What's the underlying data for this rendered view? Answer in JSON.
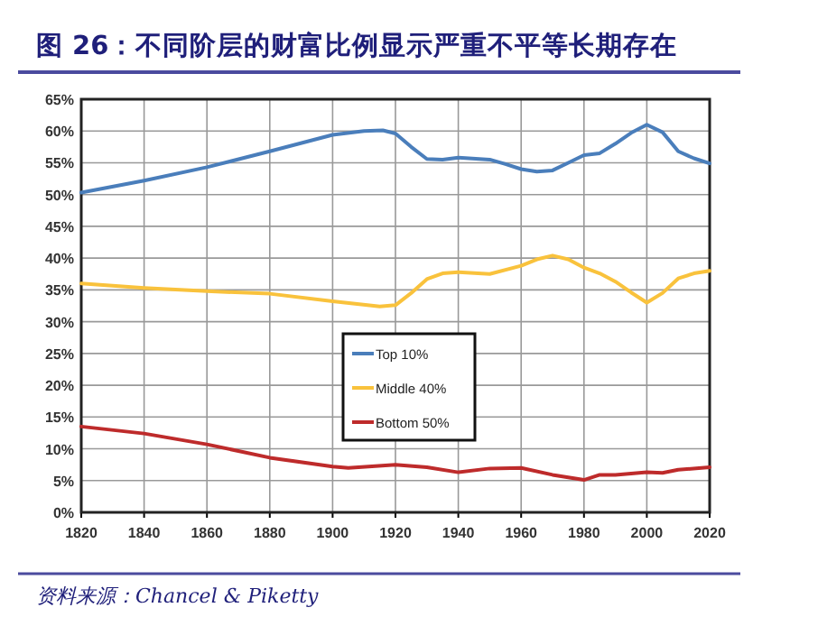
{
  "chart_data": [
    {
      "type": "line",
      "title": "图 26：不同阶层的财富比例显示严重不平等长期存在",
      "series": [
        {
          "name": "Top 10%",
          "color": "#4a7ebb",
          "x": [
            1820,
            1840,
            1860,
            1880,
            1900,
            1910,
            1916,
            1920,
            1925,
            1930,
            1935,
            1940,
            1950,
            1955,
            1960,
            1965,
            1970,
            1975,
            1980,
            1985,
            1990,
            1995,
            2000,
            2005,
            2008,
            2010,
            2015,
            2020
          ],
          "values": [
            50.3,
            52.2,
            54.3,
            56.8,
            59.4,
            60.0,
            60.1,
            59.6,
            57.5,
            55.6,
            55.5,
            55.8,
            55.5,
            54.8,
            54.0,
            53.6,
            53.8,
            55.0,
            56.2,
            56.5,
            58.0,
            59.7,
            61.0,
            59.8,
            58.0,
            56.8,
            55.7,
            54.9
          ]
        },
        {
          "name": "Middle 40%",
          "color": "#f9c23c",
          "x": [
            1820,
            1840,
            1860,
            1880,
            1900,
            1915,
            1920,
            1925,
            1930,
            1935,
            1940,
            1950,
            1960,
            1965,
            1970,
            1975,
            1980,
            1985,
            1990,
            1995,
            2000,
            2005,
            2010,
            2015,
            2020
          ],
          "values": [
            36.0,
            35.3,
            34.8,
            34.4,
            33.2,
            32.4,
            32.6,
            34.5,
            36.7,
            37.6,
            37.8,
            37.5,
            38.8,
            39.8,
            40.4,
            39.8,
            38.5,
            37.6,
            36.3,
            34.6,
            33.0,
            34.5,
            36.8,
            37.6,
            38.0
          ]
        },
        {
          "name": "Bottom 50%",
          "color": "#be2b2b",
          "x": [
            1820,
            1840,
            1860,
            1880,
            1900,
            1905,
            1920,
            1930,
            1940,
            1950,
            1960,
            1970,
            1980,
            1985,
            1990,
            2000,
            2005,
            2010,
            2020
          ],
          "values": [
            13.5,
            12.4,
            10.7,
            8.6,
            7.2,
            7.0,
            7.5,
            7.1,
            6.3,
            6.9,
            7.0,
            5.9,
            5.1,
            5.9,
            5.9,
            6.3,
            6.2,
            6.7,
            7.1
          ]
        }
      ],
      "xlim": [
        1820,
        2020
      ],
      "xticks": [
        1820,
        1840,
        1860,
        1880,
        1900,
        1920,
        1940,
        1960,
        1980,
        2000,
        2020
      ],
      "ylim": [
        0,
        65
      ],
      "yticks": [
        {
          "value": 0,
          "label": "0%"
        },
        {
          "value": 5,
          "label": "5%"
        },
        {
          "value": 10,
          "label": "10%"
        },
        {
          "value": 15,
          "label": "15%"
        },
        {
          "value": 20,
          "label": "20%"
        },
        {
          "value": 25,
          "label": "25%"
        },
        {
          "value": 30,
          "label": "30%"
        },
        {
          "value": 35,
          "label": "35%"
        },
        {
          "value": 40,
          "label": "40%"
        },
        {
          "value": 45,
          "label": "45%"
        },
        {
          "value": 50,
          "label": "50%"
        },
        {
          "value": 55,
          "label": "55%"
        },
        {
          "value": 60,
          "label": "60%"
        },
        {
          "value": 65,
          "label": "65%"
        }
      ],
      "grid": true,
      "legend": "center",
      "annotations": [
        "资料来源：Chancel & Piketty"
      ]
    }
  ]
}
